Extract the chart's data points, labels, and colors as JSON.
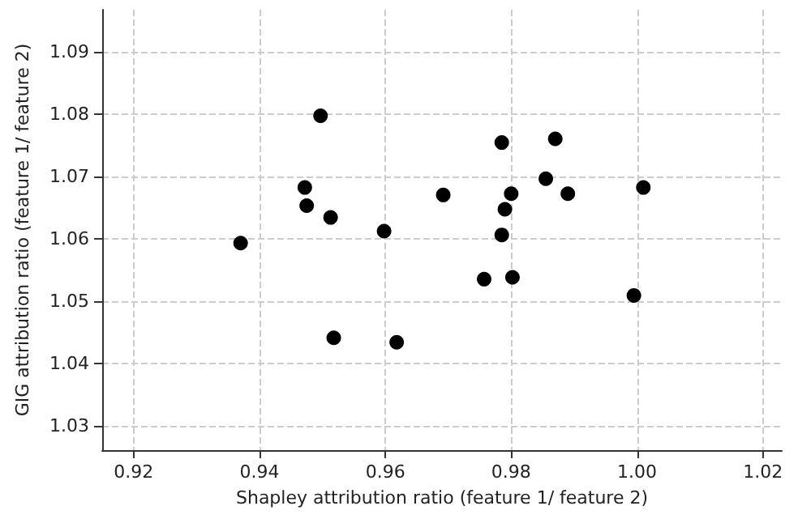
{
  "chart_data": {
    "type": "scatter",
    "xlabel": "Shapley attribution ratio (feature 1/ feature 2)",
    "ylabel": "GIG attribution ratio (feature 1/ feature 2)",
    "x": [
      0.937,
      0.9497,
      0.9472,
      0.9475,
      0.9513,
      0.9518,
      0.9598,
      0.9618,
      0.9692,
      0.9785,
      0.987,
      0.9855,
      0.98,
      0.989,
      1.001,
      0.979,
      0.9785,
      0.9757,
      0.9802,
      0.9995
    ],
    "series": [
      {
        "color": "#000000",
        "values": [
          1.0593,
          1.0797,
          1.0682,
          1.0653,
          1.0634,
          1.0441,
          1.0612,
          1.0434,
          1.067,
          1.0754,
          1.076,
          1.0696,
          1.0672,
          1.0672,
          1.0682,
          1.0647,
          1.0606,
          1.0535,
          1.0538,
          1.0509
        ]
      }
    ],
    "xlim": [
      0.915,
      1.023
    ],
    "ylim": [
      1.0261,
      1.0967
    ],
    "xticks": [
      0.92,
      0.94,
      0.96,
      0.98,
      {
        "value": 1.0,
        "label": "1.00"
      },
      1.02
    ],
    "yticks": [
      1.03,
      1.04,
      1.05,
      1.06,
      1.07,
      1.08,
      1.09
    ],
    "grid": true,
    "marker": "circle"
  }
}
